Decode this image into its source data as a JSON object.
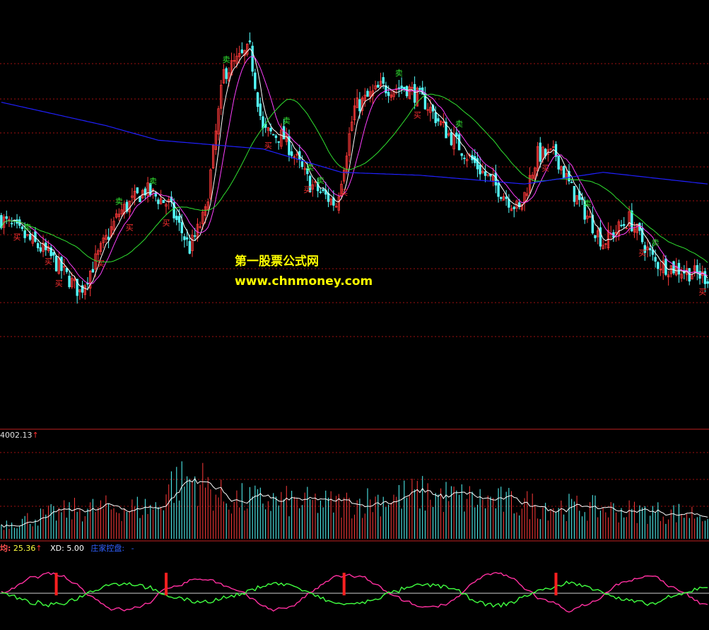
{
  "watermark": {
    "line1": "第一股票公式网",
    "line2": "www.chnmoney.com"
  },
  "volume_panel": {
    "value": "4002.13",
    "arrow": "↑"
  },
  "indicator_panel": {
    "key1": "均:",
    "val1": "25.36",
    "arrow": "↑",
    "key2": "XD:",
    "val2": "5.00",
    "key3": "庄家控盘:",
    "val3": "-"
  },
  "colors": {
    "background": "#000000",
    "up_candle": "#ff3a3a",
    "down_candle": "#54ffff",
    "buy_signal": "#ff3030",
    "sell_signal": "#30e030",
    "ma_white": "#ffffff",
    "ma_magenta": "#ff40ff",
    "ma_green": "#30e030",
    "ma_blue": "#2020ff",
    "grid": "#a01010",
    "volume_ma": "#ffffff",
    "indicator_magenta": "#ff30a0",
    "indicator_green": "#40ff40"
  },
  "chart_data": {
    "type": "candlestick",
    "title": "",
    "grid": true,
    "price_anchors": [
      [
        0,
        0.4
      ],
      [
        18,
        0.28
      ],
      [
        30,
        0.15
      ],
      [
        45,
        0.42
      ],
      [
        55,
        0.5
      ],
      [
        64,
        0.45
      ],
      [
        72,
        0.3
      ],
      [
        78,
        0.42
      ],
      [
        85,
        0.9
      ],
      [
        95,
        0.98
      ],
      [
        100,
        0.7
      ],
      [
        108,
        0.68
      ],
      [
        118,
        0.52
      ],
      [
        128,
        0.45
      ],
      [
        135,
        0.78
      ],
      [
        145,
        0.85
      ],
      [
        155,
        0.85
      ],
      [
        162,
        0.8
      ],
      [
        170,
        0.7
      ],
      [
        185,
        0.55
      ],
      [
        198,
        0.43
      ],
      [
        205,
        0.62
      ],
      [
        212,
        0.62
      ],
      [
        218,
        0.5
      ],
      [
        230,
        0.32
      ],
      [
        240,
        0.4
      ],
      [
        250,
        0.25
      ],
      [
        262,
        0.22
      ],
      [
        270,
        0.2
      ]
    ],
    "price_range": [
      0,
      1
    ],
    "candle_count": 271,
    "buy_signals": [
      {
        "label": "买",
        "index": 6
      },
      {
        "label": "买",
        "index": 18
      },
      {
        "label": "买",
        "index": 22
      },
      {
        "label": "买",
        "index": 38
      },
      {
        "label": "买",
        "index": 49
      },
      {
        "label": "买",
        "index": 63
      },
      {
        "label": "买",
        "index": 102
      },
      {
        "label": "买",
        "index": 117
      },
      {
        "label": "买",
        "index": 131
      },
      {
        "label": "买",
        "index": 159
      },
      {
        "label": "买",
        "index": 208
      },
      {
        "label": "买",
        "index": 245
      },
      {
        "label": "买",
        "index": 268
      }
    ],
    "sell_signals": [
      {
        "label": "卖",
        "index": 10
      },
      {
        "label": "卖",
        "index": 45
      },
      {
        "label": "卖",
        "index": 58
      },
      {
        "label": "卖",
        "index": 86
      },
      {
        "label": "卖",
        "index": 109
      },
      {
        "label": "卖",
        "index": 118
      },
      {
        "label": "卖",
        "index": 122
      },
      {
        "label": "卖",
        "index": 152
      },
      {
        "label": "卖",
        "index": 175
      },
      {
        "label": "卖",
        "index": 224
      },
      {
        "label": "卖",
        "index": 250
      }
    ],
    "moving_averages": [
      {
        "window": 5,
        "color": "#ffffff"
      },
      {
        "window": 10,
        "color": "#ff40ff"
      },
      {
        "window": 30,
        "color": "#30e030"
      }
    ],
    "long_ma_anchors": [
      [
        0,
        0.8
      ],
      [
        40,
        0.72
      ],
      [
        60,
        0.67
      ],
      [
        100,
        0.64
      ],
      [
        130,
        0.56
      ],
      [
        160,
        0.55
      ],
      [
        200,
        0.52
      ],
      [
        230,
        0.56
      ],
      [
        270,
        0.52
      ]
    ],
    "volume_anchors": [
      [
        0,
        0.15
      ],
      [
        30,
        0.3
      ],
      [
        60,
        0.32
      ],
      [
        64,
        0.55
      ],
      [
        75,
        0.6
      ],
      [
        85,
        0.4
      ],
      [
        130,
        0.35
      ],
      [
        160,
        0.45
      ],
      [
        200,
        0.35
      ],
      [
        240,
        0.28
      ],
      [
        270,
        0.25
      ]
    ],
    "volume_range": [
      0,
      1
    ],
    "indicator_range": [
      -1,
      1
    ],
    "indicator_signal_indices": [
      21,
      63,
      131,
      212
    ]
  }
}
